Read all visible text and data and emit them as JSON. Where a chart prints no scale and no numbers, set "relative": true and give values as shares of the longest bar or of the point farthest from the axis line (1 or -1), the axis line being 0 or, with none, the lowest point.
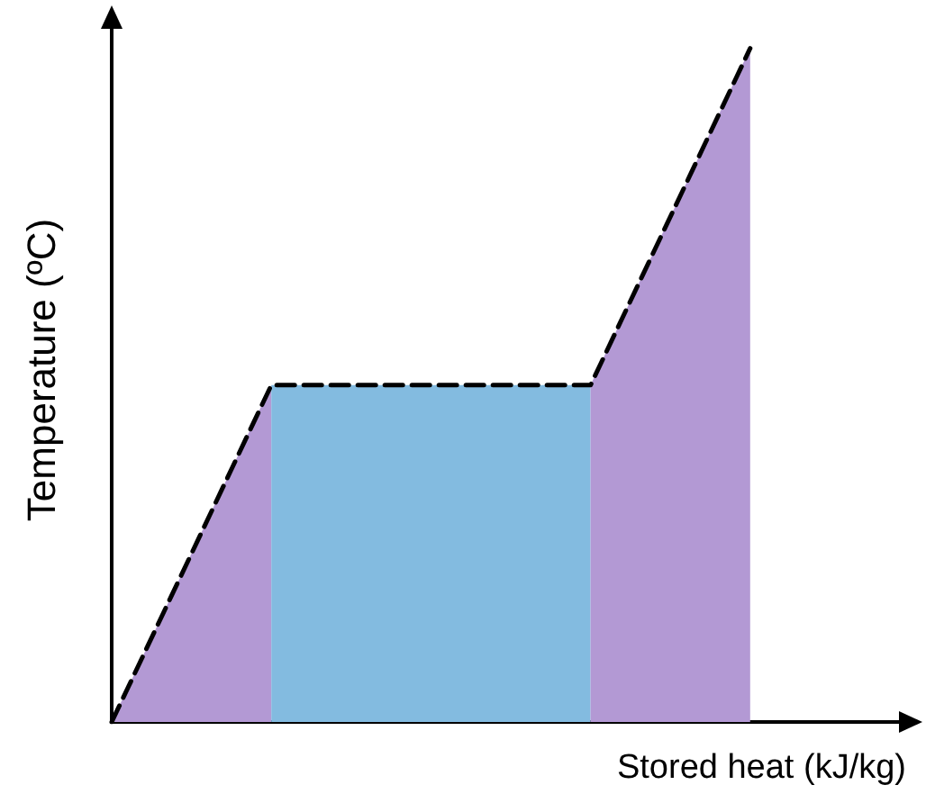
{
  "chart_data": {
    "type": "area",
    "relative": true,
    "xlabel": "Stored heat (kJ/kg)",
    "ylabel": "Temperature (ºC)",
    "grid": false,
    "categories": [
      null,
      null,
      null,
      null,
      null,
      null
    ],
    "series": [
      {
        "color": "#b399d4",
        "values": [
          0,
          0.5,
          null,
          null,
          null,
          null
        ]
      },
      {
        "color": "#83bbe0",
        "values": [
          null,
          0.5,
          0.5,
          0.5,
          null,
          null
        ]
      },
      {
        "color": "#b399d4",
        "values": [
          null,
          null,
          null,
          0.5,
          1,
          null
        ]
      },
      {
        "type": "line",
        "color": "#000000",
        "line_style": "dashed",
        "marker": "none",
        "values": [
          0,
          0.5,
          0.5,
          0.5,
          1,
          null
        ]
      }
    ]
  }
}
